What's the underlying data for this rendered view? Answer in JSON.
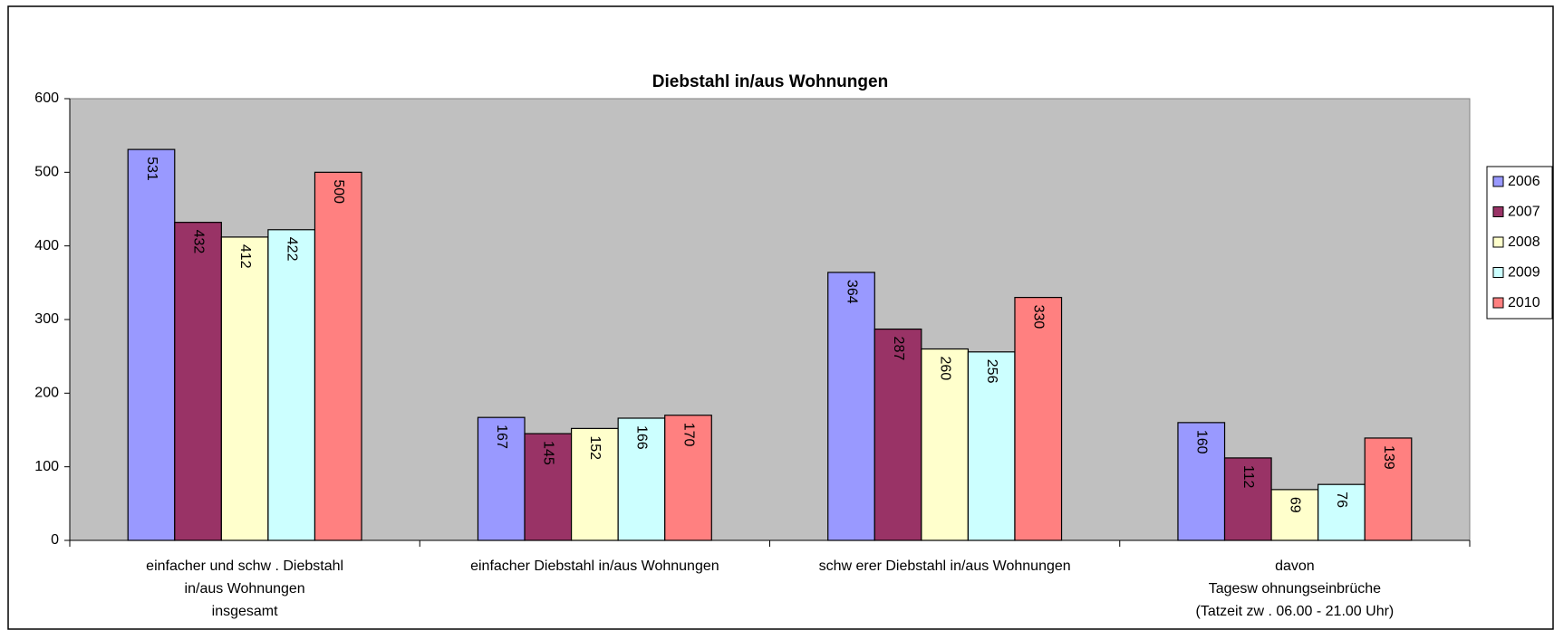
{
  "chart_data": {
    "type": "bar",
    "title": "Diebstahl in/aus Wohnungen",
    "categories": [
      "einfacher und schw . Diebstahl\nin/aus Wohnungen\ninsgesamt",
      "einfacher Diebstahl in/aus Wohnungen",
      "schw erer Diebstahl in/aus Wohnungen",
      "davon\nTagesw ohnungseinbrüche\n(Tatzeit zw . 06.00 - 21.00 Uhr)"
    ],
    "series": [
      {
        "name": "2006",
        "color": "#9999ff",
        "values": [
          531,
          167,
          364,
          160
        ]
      },
      {
        "name": "2007",
        "color": "#993366",
        "values": [
          432,
          145,
          287,
          112
        ]
      },
      {
        "name": "2008",
        "color": "#ffffcc",
        "values": [
          412,
          152,
          260,
          69
        ]
      },
      {
        "name": "2009",
        "color": "#ccffff",
        "values": [
          422,
          166,
          256,
          76
        ]
      },
      {
        "name": "2010",
        "color": "#ff8080",
        "values": [
          500,
          170,
          330,
          139
        ]
      }
    ],
    "ylim": [
      0,
      600
    ],
    "yticks": [
      0,
      100,
      200,
      300,
      400,
      500,
      600
    ],
    "legend": "right",
    "data_labels": true
  }
}
